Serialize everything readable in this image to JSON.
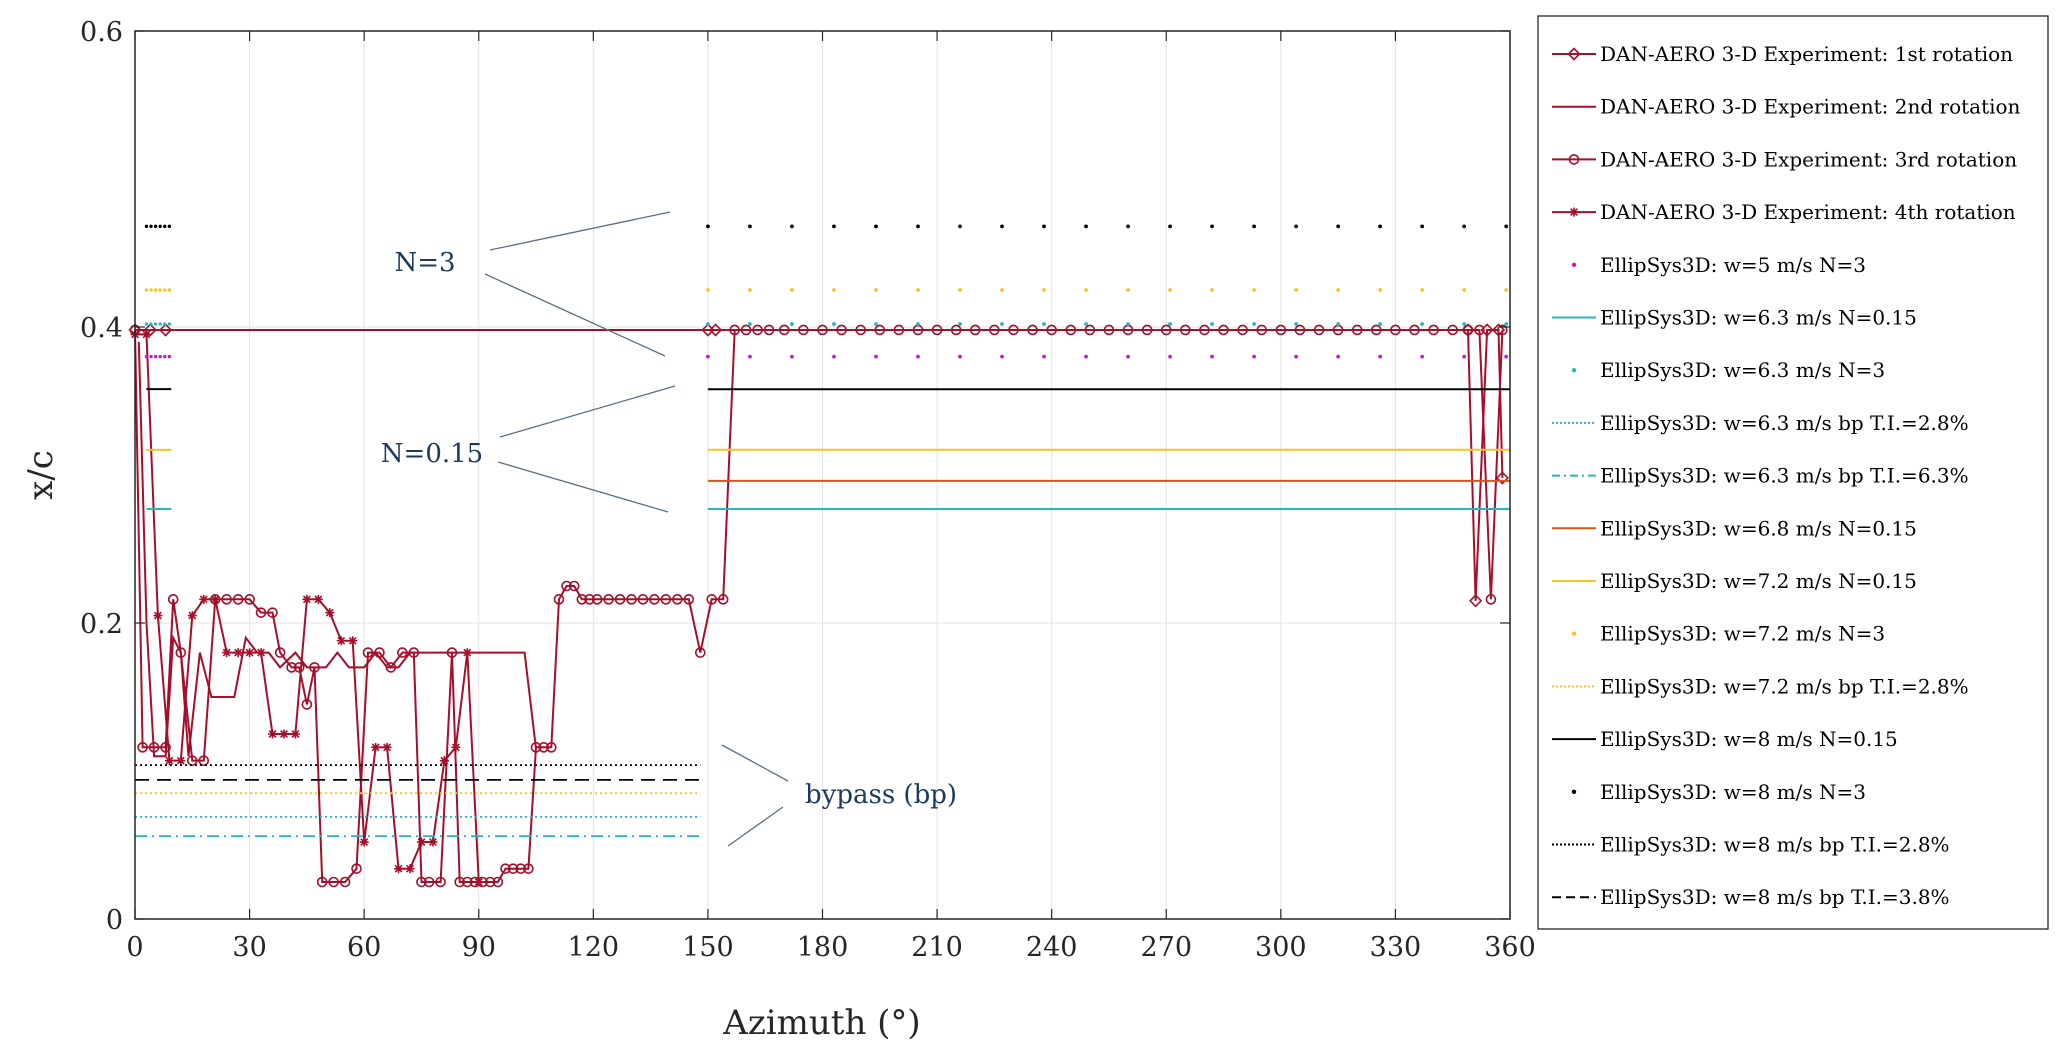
{
  "chart_data": {
    "type": "line",
    "title": "",
    "xlabel": "Azimuth (°)",
    "ylabel": "x/c",
    "xlim": [
      0,
      360
    ],
    "ylim": [
      0,
      0.6
    ],
    "grid": true,
    "legend_position": "outside-right",
    "x_ticks": [
      "0",
      "30",
      "60",
      "90",
      "120",
      "150",
      "180",
      "210",
      "240",
      "270",
      "300",
      "330",
      "360"
    ],
    "y_ticks": [
      "0",
      "0.2",
      "0.4",
      "0.6"
    ],
    "annotations": [
      {
        "text": "N=3"
      },
      {
        "text": "N=0.15"
      },
      {
        "text": "bypass (bp)"
      }
    ],
    "series": [
      {
        "name": "DAN-AERO 3-D Experiment: 1st rotation",
        "color": "#a50f2b",
        "marker": "diamond",
        "style": "solid",
        "x": [
          0,
          4,
          8,
          150,
          152,
          349,
          351,
          354,
          357,
          358
        ],
        "y": [
          0.398,
          0.398,
          0.398,
          0.398,
          0.398,
          0.398,
          0.215,
          0.398,
          0.398,
          0.298
        ]
      },
      {
        "name": "DAN-AERO 3-D Experiment: 2nd rotation",
        "color": "#a50f2b",
        "marker": "none",
        "style": "solid",
        "x": [
          1,
          3,
          5,
          8,
          10,
          12,
          14,
          17,
          20,
          23,
          26,
          29,
          32,
          35,
          38,
          42,
          45,
          48,
          50,
          53,
          56,
          60,
          63,
          66,
          69,
          72,
          75,
          78,
          81,
          84,
          87,
          90,
          93,
          96,
          99,
          102,
          105
        ],
        "y": [
          0.39,
          0.2,
          0.11,
          0.11,
          0.19,
          0.18,
          0.11,
          0.18,
          0.15,
          0.15,
          0.15,
          0.19,
          0.18,
          0.18,
          0.17,
          0.18,
          0.17,
          0.17,
          0.17,
          0.18,
          0.17,
          0.17,
          0.18,
          0.17,
          0.17,
          0.18,
          0.18,
          0.18,
          0.18,
          0.18,
          0.18,
          0.18,
          0.18,
          0.18,
          0.18,
          0.18,
          0.115
        ]
      },
      {
        "name": "DAN-AERO 3-D Experiment: 3rd rotation",
        "color": "#a50f2b",
        "marker": "circle",
        "style": "solid",
        "x": [
          0,
          2,
          5,
          8,
          10,
          12,
          15,
          18,
          21,
          24,
          27,
          30,
          33,
          36,
          38,
          41,
          43,
          45,
          47,
          49,
          52,
          55,
          58,
          61,
          64,
          67,
          70,
          73,
          75,
          77,
          80,
          83,
          85,
          87,
          89,
          91,
          93,
          95,
          97,
          99,
          101,
          103,
          105,
          107,
          109,
          111,
          113,
          115,
          117,
          119,
          121,
          124,
          127,
          130,
          133,
          136,
          139,
          142,
          145,
          148,
          151,
          154,
          157,
          160,
          163,
          166,
          170,
          175,
          180,
          185,
          190,
          195,
          200,
          205,
          210,
          215,
          220,
          225,
          230,
          235,
          240,
          245,
          250,
          255,
          260,
          265,
          270,
          275,
          280,
          285,
          290,
          295,
          300,
          305,
          310,
          315,
          320,
          325,
          330,
          335,
          340,
          345,
          349,
          352,
          355,
          358
        ],
        "y": [
          0.398,
          0.116,
          0.116,
          0.116,
          0.216,
          0.18,
          0.107,
          0.107,
          0.216,
          0.216,
          0.216,
          0.216,
          0.207,
          0.207,
          0.18,
          0.17,
          0.17,
          0.145,
          0.17,
          0.025,
          0.025,
          0.025,
          0.034,
          0.18,
          0.18,
          0.17,
          0.18,
          0.18,
          0.025,
          0.025,
          0.025,
          0.18,
          0.025,
          0.025,
          0.025,
          0.025,
          0.025,
          0.025,
          0.034,
          0.034,
          0.034,
          0.034,
          0.116,
          0.116,
          0.116,
          0.216,
          0.225,
          0.225,
          0.216,
          0.216,
          0.216,
          0.216,
          0.216,
          0.216,
          0.216,
          0.216,
          0.216,
          0.216,
          0.216,
          0.18,
          0.216,
          0.216,
          0.398,
          0.398,
          0.398,
          0.398,
          0.398,
          0.398,
          0.398,
          0.398,
          0.398,
          0.398,
          0.398,
          0.398,
          0.398,
          0.398,
          0.398,
          0.398,
          0.398,
          0.398,
          0.398,
          0.398,
          0.398,
          0.398,
          0.398,
          0.398,
          0.398,
          0.398,
          0.398,
          0.398,
          0.398,
          0.398,
          0.398,
          0.398,
          0.398,
          0.398,
          0.398,
          0.398,
          0.398,
          0.398,
          0.398,
          0.398,
          0.398,
          0.398,
          0.216,
          0.398
        ]
      },
      {
        "name": "DAN-AERO 3-D Experiment: 4th rotation",
        "color": "#a50f2b",
        "marker": "star",
        "style": "solid",
        "x": [
          0,
          3,
          6,
          9,
          12,
          15,
          18,
          21,
          24,
          27,
          30,
          33,
          36,
          39,
          42,
          45,
          48,
          51,
          54,
          57,
          60,
          63,
          66,
          69,
          72,
          75,
          78,
          81,
          84,
          87,
          90
        ],
        "y": [
          0.395,
          0.395,
          0.205,
          0.107,
          0.107,
          0.205,
          0.216,
          0.216,
          0.18,
          0.18,
          0.18,
          0.18,
          0.125,
          0.125,
          0.125,
          0.216,
          0.216,
          0.207,
          0.188,
          0.188,
          0.052,
          0.116,
          0.116,
          0.034,
          0.034,
          0.052,
          0.052,
          0.107,
          0.116,
          0.18,
          0.025
        ]
      },
      {
        "name": "EllipSys3D: w=5 m/s N=3",
        "color": "#c61ac6",
        "style": "dots",
        "x": [
          150,
          360
        ],
        "y": [
          0.38,
          0.38
        ],
        "tab_y": 0.38
      },
      {
        "name": "EllipSys3D: w=6.3 m/s N=0.15",
        "color": "#2ab5c0",
        "style": "solid",
        "x": [
          150,
          360
        ],
        "y": [
          0.277,
          0.277
        ],
        "tab_y": 0.277
      },
      {
        "name": "EllipSys3D: w=6.3 m/s N=3",
        "color": "#2ab5c0",
        "style": "dots",
        "x": [
          150,
          360
        ],
        "y": [
          0.402,
          0.402
        ],
        "tab_y": 0.402
      },
      {
        "name": "EllipSys3D: w=6.3 m/s bp T.I.=2.8%",
        "color": "#2ab5c0",
        "style": "dotted",
        "x": [
          0,
          148
        ],
        "y": [
          0.069,
          0.069
        ]
      },
      {
        "name": "EllipSys3D: w=6.3 m/s bp T.I.=6.3%",
        "color": "#2ab5c0",
        "style": "dashdot",
        "x": [
          0,
          148
        ],
        "y": [
          0.056,
          0.056
        ]
      },
      {
        "name": "EllipSys3D: w=6.8 m/s N=0.15",
        "color": "#d9541a",
        "style": "solid",
        "x": [
          150,
          360
        ],
        "y": [
          0.296,
          0.296
        ]
      },
      {
        "name": "EllipSys3D: w=7.2 m/s N=0.15",
        "color": "#fcc321",
        "style": "solid",
        "x": [
          150,
          360
        ],
        "y": [
          0.317,
          0.317
        ],
        "tab_y": 0.317
      },
      {
        "name": "EllipSys3D: w=7.2 m/s N=3",
        "color": "#fcc321",
        "style": "dots",
        "x": [
          150,
          360
        ],
        "y": [
          0.425,
          0.425
        ],
        "tab_y": 0.425
      },
      {
        "name": "EllipSys3D: w=7.2 m/s bp T.I.=2.8%",
        "color": "#fcc321",
        "style": "dotted",
        "x": [
          0,
          148
        ],
        "y": [
          0.085,
          0.085
        ]
      },
      {
        "name": "EllipSys3D: w=8 m/s N=0.15",
        "color": "#000000",
        "style": "solid",
        "x": [
          150,
          360
        ],
        "y": [
          0.358,
          0.358
        ],
        "tab_y": 0.358
      },
      {
        "name": "EllipSys3D: w=8 m/s N=3",
        "color": "#000000",
        "style": "dots",
        "x": [
          150,
          360
        ],
        "y": [
          0.468,
          0.468
        ],
        "tab_y": 0.468
      },
      {
        "name": "EllipSys3D: w=8 m/s bp T.I.=2.8%",
        "color": "#000000",
        "style": "dotted",
        "x": [
          0,
          148
        ],
        "y": [
          0.104,
          0.104
        ]
      },
      {
        "name": "EllipSys3D: w=8 m/s bp T.I.=3.8%",
        "color": "#000000",
        "style": "dashed",
        "x": [
          0,
          148
        ],
        "y": [
          0.094,
          0.094
        ]
      }
    ]
  }
}
